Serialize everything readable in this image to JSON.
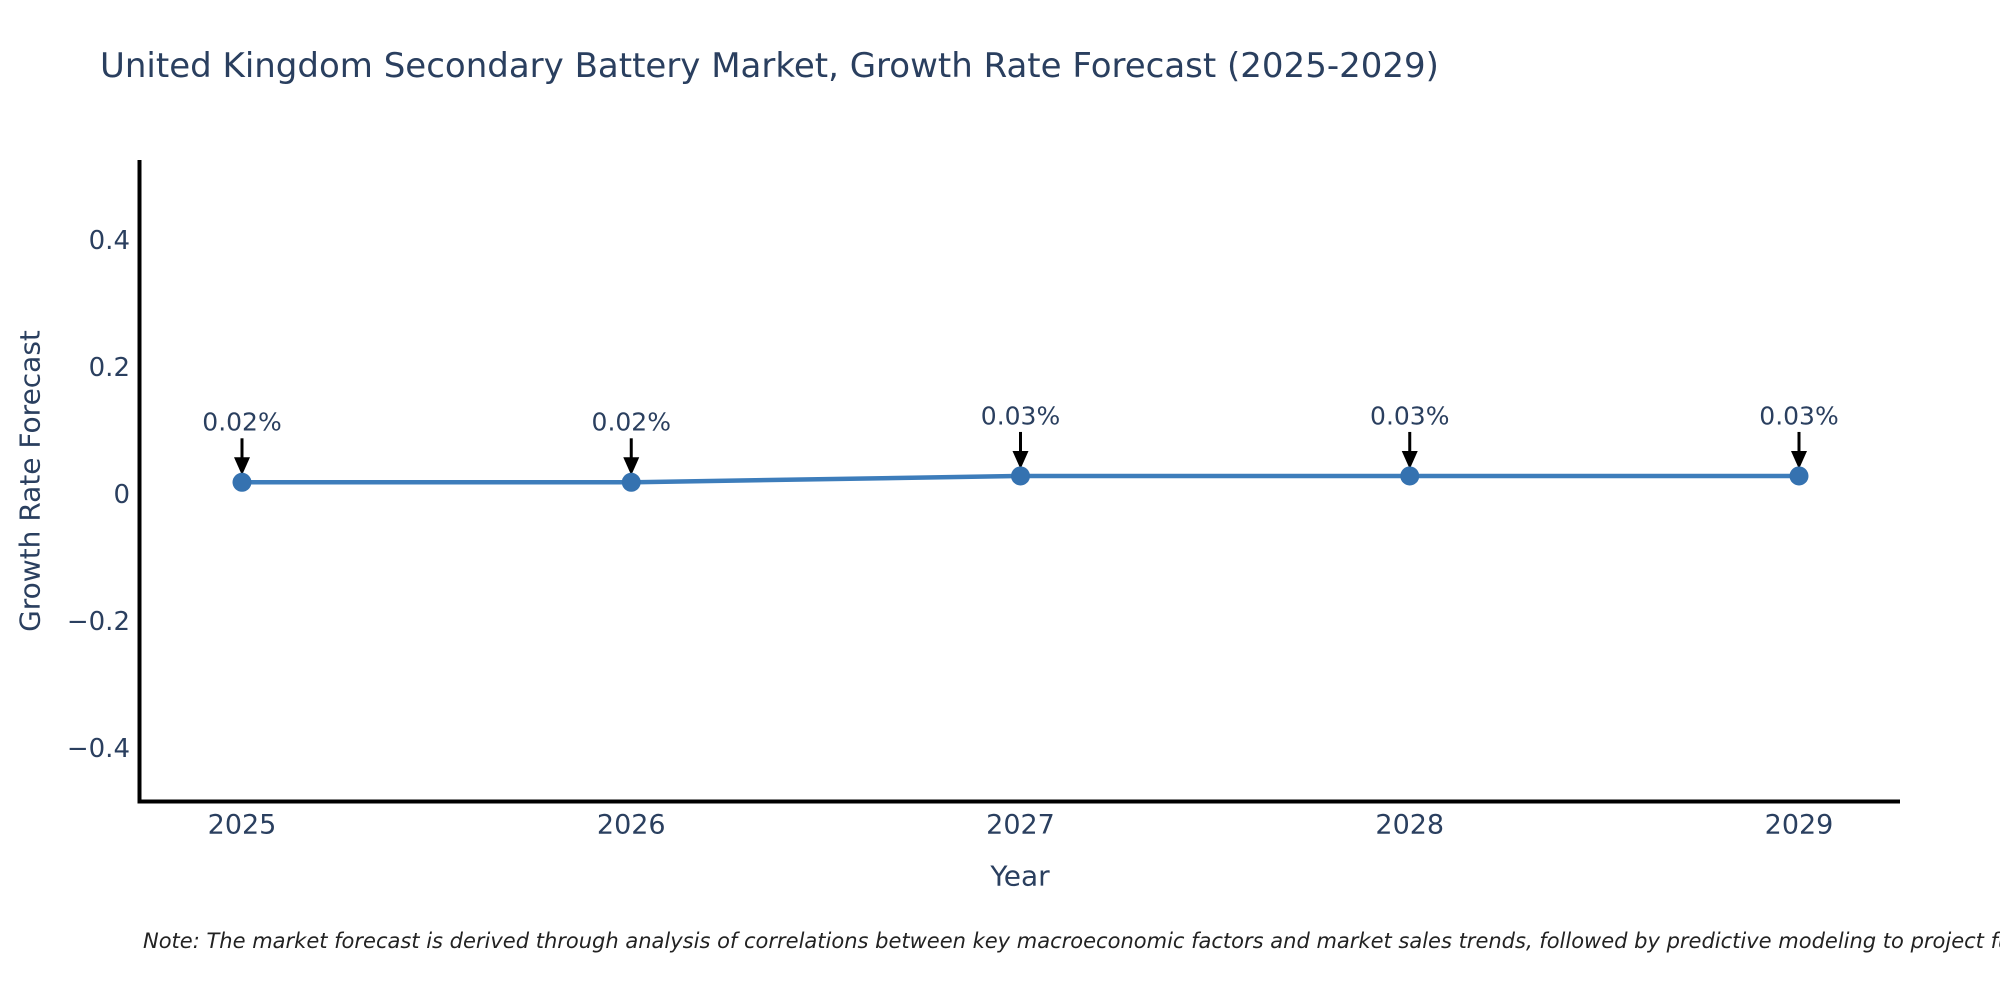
{
  "page": {
    "background": "#ffffff"
  },
  "chart_data": {
    "type": "line",
    "title": "United Kingdom Secondary Battery Market, Growth Rate Forecast (2025-2029)",
    "xlabel": "Year",
    "ylabel": "Growth Rate Forecast",
    "categories": [
      "2025",
      "2026",
      "2027",
      "2028",
      "2029"
    ],
    "series": [
      {
        "name": "Growth Rate Forecast",
        "values": [
          0.02,
          0.02,
          0.03,
          0.03,
          0.03
        ]
      }
    ],
    "point_labels": [
      "0.02%",
      "0.02%",
      "0.03%",
      "0.03%",
      "0.03%"
    ],
    "yticks": [
      0.4,
      0.2,
      0,
      -0.2,
      -0.4
    ],
    "ytick_labels": [
      "0.4",
      "0.2",
      "0",
      "−0.2",
      "−0.4"
    ],
    "ylim": [
      -0.49,
      0.53
    ],
    "grid": false,
    "legend": false,
    "annotation_arrow": "down-arrow",
    "colors": {
      "line": "#3d7dbb",
      "marker": "#3572b0",
      "axis": "#000000",
      "text": "#2a3f5f",
      "arrow": "#000000",
      "note_text": "#222222"
    },
    "note": "Note: The market forecast is derived through analysis of correlations between key macroeconomic factors and market sales trends, followed by predictive modeling to project future sales"
  }
}
